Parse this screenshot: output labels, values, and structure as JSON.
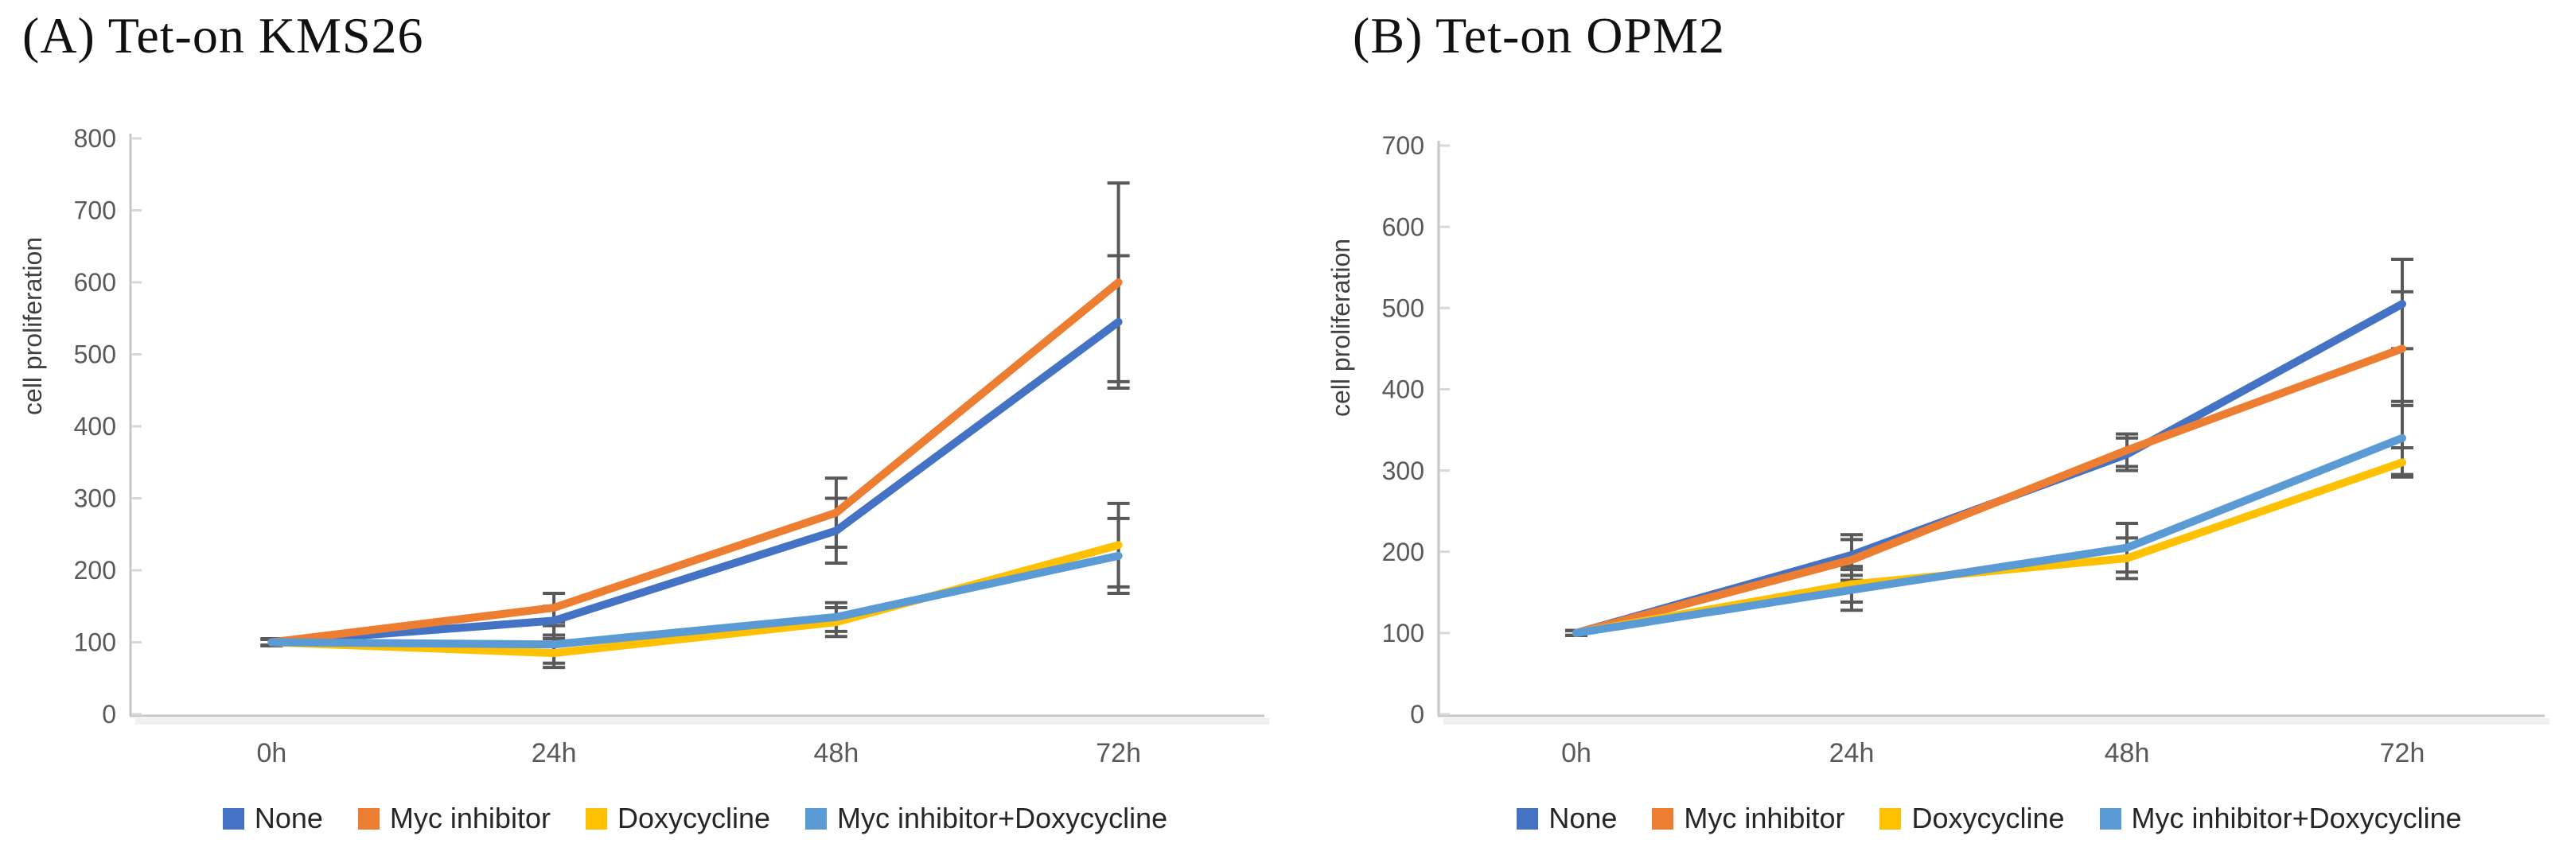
{
  "figure": {
    "background": "#ffffff",
    "error_bar_color": "#595959",
    "axis_line_color": "#c6c6c6",
    "tick_mark_color": "#d8d8d8",
    "tick_label_color": "#595959",
    "axis_title_color": "#404040"
  },
  "chart_data": [
    {
      "type": "line",
      "title": "(A) Tet-on KMS26",
      "ylabel": "cell proliferation",
      "categories": [
        "0h",
        "24h",
        "48h",
        "72h"
      ],
      "ylim": [
        0,
        800
      ],
      "ytick_step": 100,
      "grid": false,
      "legend_position": "bottom",
      "series": [
        {
          "name": "None",
          "color": "#4472C4",
          "values": [
            100,
            130,
            255,
            545
          ],
          "errors": [
            5,
            20,
            45,
            92
          ]
        },
        {
          "name": "Myc inhibitor",
          "color": "#ED7D31",
          "values": [
            100,
            148,
            280,
            600
          ],
          "errors": [
            5,
            20,
            48,
            138
          ]
        },
        {
          "name": "Doxycycline",
          "color": "#FFC000",
          "values": [
            100,
            85,
            128,
            235
          ],
          "errors": [
            4,
            20,
            20,
            58
          ]
        },
        {
          "name": "Myc inhibitor+Doxycycline",
          "color": "#5B9BD5",
          "values": [
            100,
            97,
            135,
            220
          ],
          "errors": [
            4,
            26,
            20,
            52
          ]
        }
      ]
    },
    {
      "type": "line",
      "title": "(B) Tet-on OPM2",
      "ylabel": "cell proliferation",
      "categories": [
        "0h",
        "24h",
        "48h",
        "72h"
      ],
      "ylim": [
        0,
        700
      ],
      "ytick_step": 100,
      "grid": false,
      "legend_position": "bottom",
      "series": [
        {
          "name": "None",
          "color": "#4472C4",
          "values": [
            100,
            196,
            320,
            505
          ],
          "errors": [
            3,
            25,
            20,
            55
          ]
        },
        {
          "name": "Myc inhibitor",
          "color": "#ED7D31",
          "values": [
            100,
            190,
            325,
            450
          ],
          "errors": [
            3,
            25,
            20,
            70
          ]
        },
        {
          "name": "Doxycycline",
          "color": "#FFC000",
          "values": [
            100,
            160,
            192,
            310
          ],
          "errors": [
            3,
            22,
            25,
            18
          ]
        },
        {
          "name": "Myc inhibitor+Doxycycline",
          "color": "#5B9BD5",
          "values": [
            100,
            153,
            205,
            340
          ],
          "errors": [
            3,
            25,
            30,
            45
          ]
        }
      ]
    }
  ]
}
